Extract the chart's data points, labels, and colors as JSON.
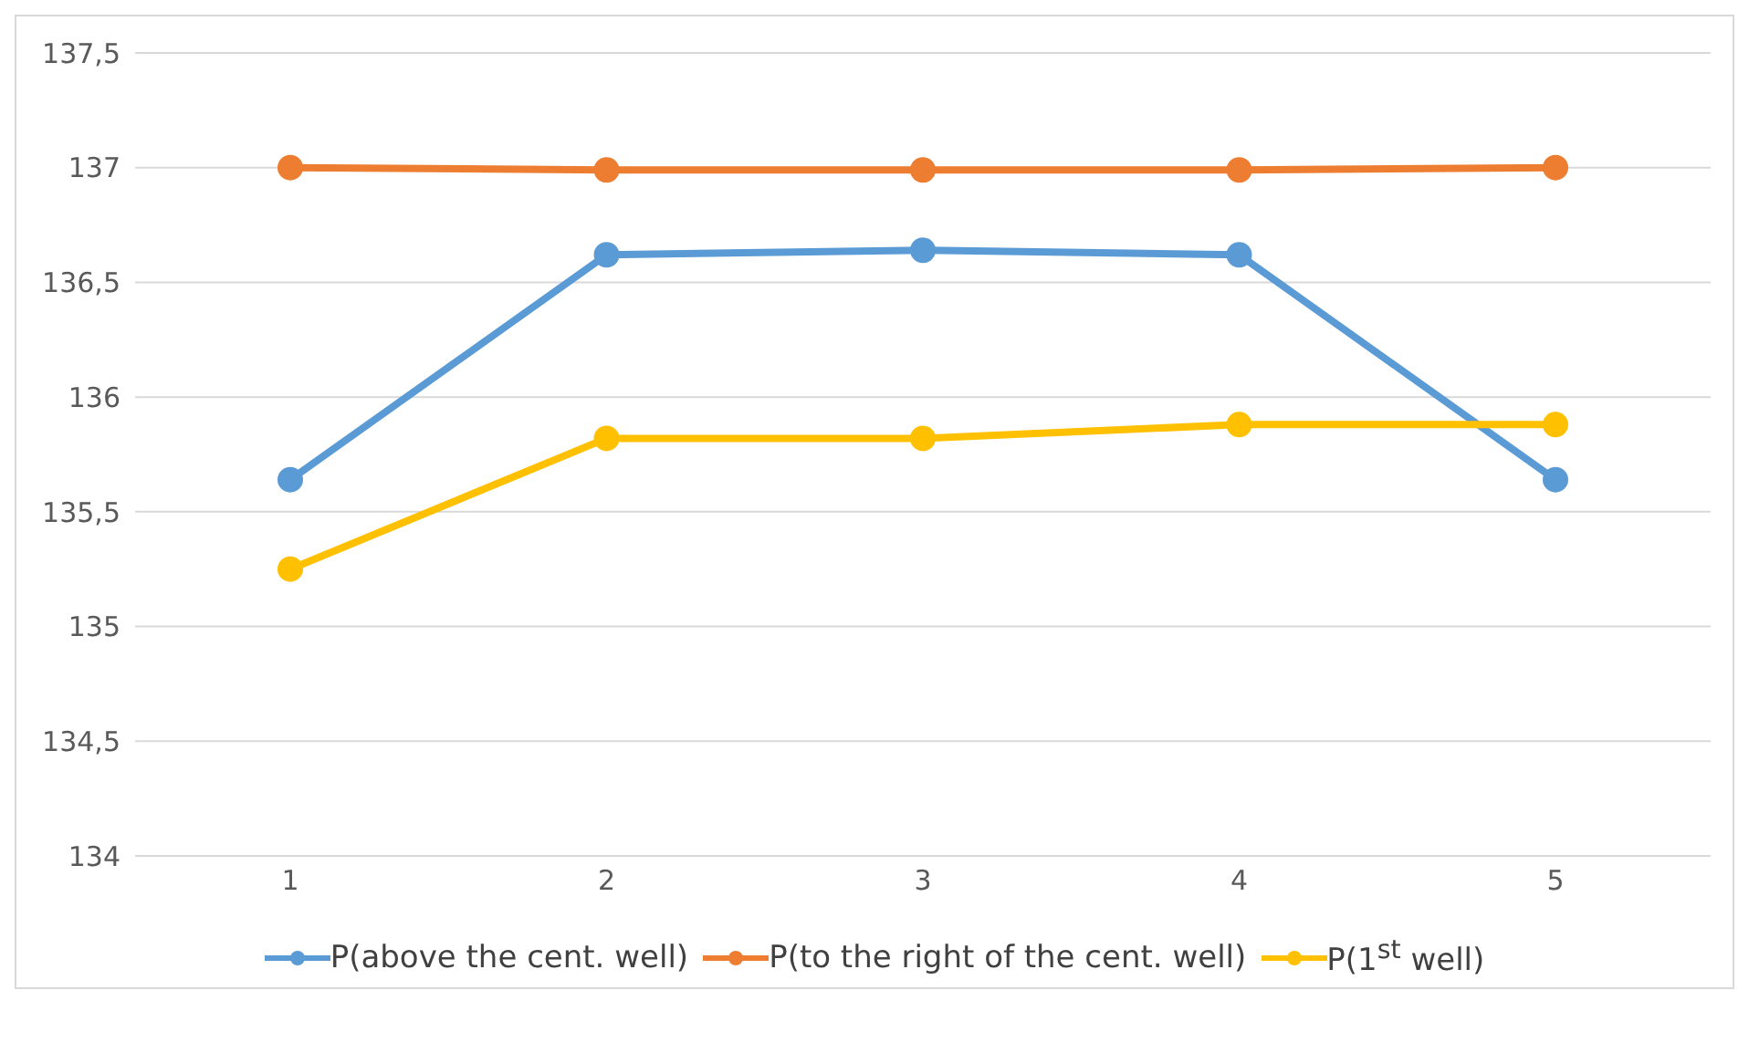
{
  "chart_data": {
    "type": "line",
    "categories": [
      "1",
      "2",
      "3",
      "4",
      "5"
    ],
    "series": [
      {
        "name": "P(above the cent. well)",
        "color": "#5b9bd5",
        "values": [
          135.64,
          136.62,
          136.64,
          136.62,
          135.64
        ]
      },
      {
        "name": "P(to the right of the cent. well)",
        "color": "#ed7d31",
        "values": [
          137,
          136.99,
          136.99,
          136.99,
          137
        ]
      },
      {
        "name": "P(1$^{st}$ well)",
        "color": "#ffc000",
        "values": [
          135.25,
          135.82,
          135.82,
          135.88,
          135.88
        ]
      }
    ],
    "ylim": [
      134,
      137.5
    ],
    "yticks": [
      134,
      {
        "value": 134.5,
        "label": "134,5"
      },
      135,
      {
        "value": 135.5,
        "label": "135,5"
      },
      136,
      {
        "value": 136.5,
        "label": "136,5"
      },
      137,
      {
        "value": 137.5,
        "label": "137,5"
      }
    ],
    "grid": "y",
    "legend": "bottom",
    "marker": "circle",
    "line_style": "solid"
  }
}
